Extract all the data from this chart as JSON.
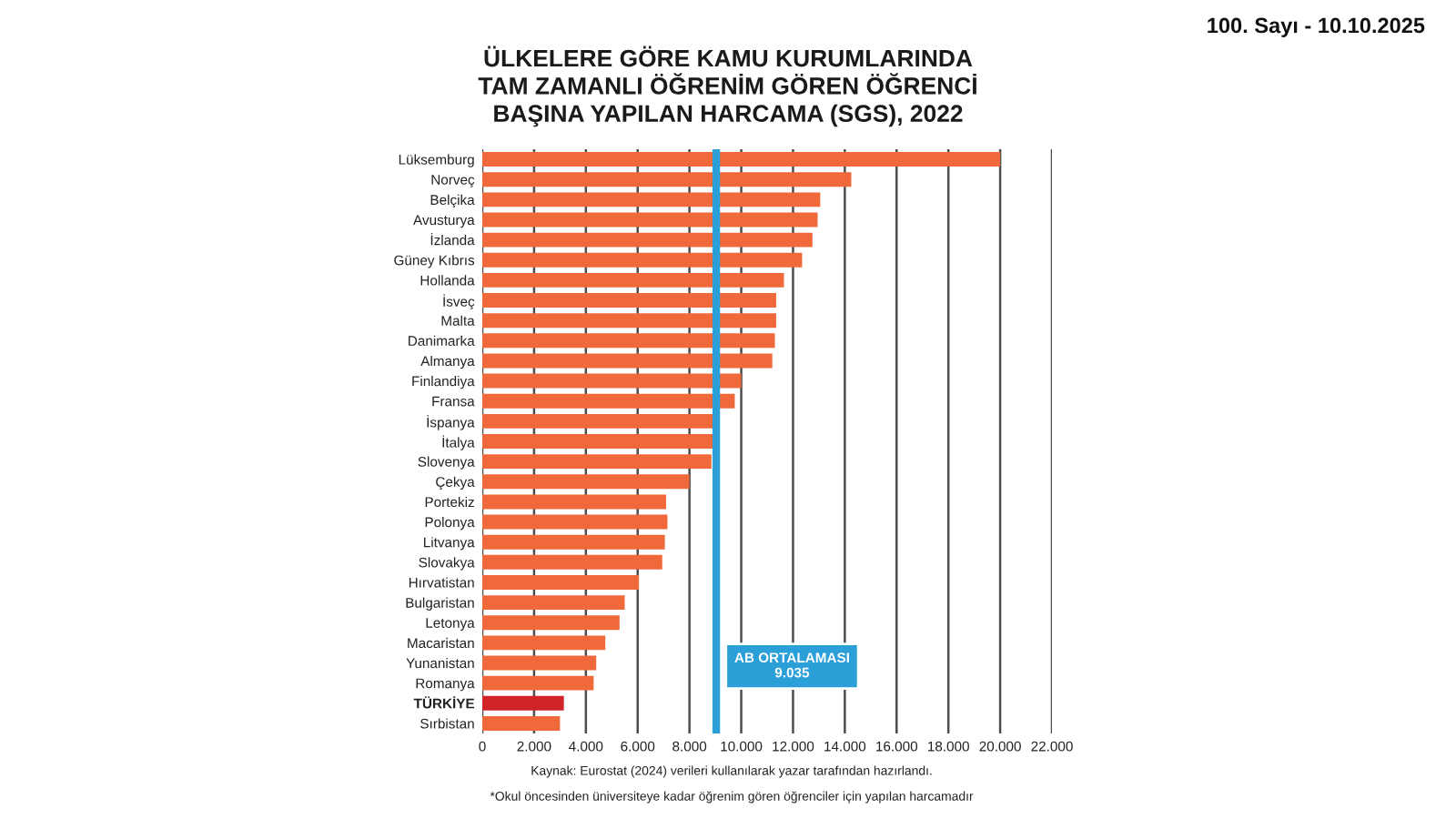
{
  "chart_data": {
    "type": "bar",
    "orientation": "horizontal",
    "title": "ÜLKELERE GÖRE KAMU KURUMLARINDA\nTAM ZAMANLI ÖĞRENİM GÖREN ÖĞRENCİ\nBAŞINA YAPILAN HARCAMA (SGS), 2022",
    "categories": [
      "Lüksemburg",
      "Norveç",
      "Belçika",
      "Avusturya",
      "İzlanda",
      "Güney Kıbrıs",
      "Hollanda",
      "İsveç",
      "Malta",
      "Danimarka",
      "Almanya",
      "Finlandiya",
      "Fransa",
      "İspanya",
      "İtalya",
      "Slovenya",
      "Çekya",
      "Portekiz",
      "Polonya",
      "Litvanya",
      "Slovakya",
      "Hırvatistan",
      "Bulgaristan",
      "Letonya",
      "Macaristan",
      "Yunanistan",
      "Romanya",
      "TÜRKİYE",
      "Sırbistan"
    ],
    "values": [
      20000,
      14250,
      13050,
      12950,
      12750,
      12350,
      11650,
      11350,
      11350,
      11300,
      11200,
      10000,
      9750,
      9000,
      9000,
      8850,
      8000,
      7100,
      7150,
      7050,
      6950,
      6050,
      5500,
      5300,
      4750,
      4400,
      4300,
      3150,
      3000
    ],
    "colors": [
      "#f0693b",
      "#f0693b",
      "#f0693b",
      "#f0693b",
      "#f0693b",
      "#f0693b",
      "#f0693b",
      "#f0693b",
      "#f0693b",
      "#f0693b",
      "#f0693b",
      "#f0693b",
      "#f0693b",
      "#f0693b",
      "#f0693b",
      "#f0693b",
      "#f0693b",
      "#f0693b",
      "#f0693b",
      "#f0693b",
      "#f0693b",
      "#f0693b",
      "#f0693b",
      "#f0693b",
      "#f0693b",
      "#f0693b",
      "#f0693b",
      "#d0232a",
      "#f0693b"
    ],
    "xlim": [
      0,
      22000
    ],
    "xticks": [
      0,
      {
        "value": 2000,
        "label": "2.000"
      },
      {
        "value": 4000,
        "label": "4.000"
      },
      {
        "value": 6000,
        "label": "6.000"
      },
      {
        "value": 8000,
        "label": "8.000"
      },
      {
        "value": 10000,
        "label": "10.000"
      },
      {
        "value": 12000,
        "label": "12.000"
      },
      {
        "value": 14000,
        "label": "14.000"
      },
      {
        "value": 16000,
        "label": "16.000"
      },
      {
        "value": 18000,
        "label": "18.000"
      },
      {
        "value": 20000,
        "label": "20.000"
      },
      {
        "value": 22000,
        "label": "22.000"
      }
    ],
    "grid": "x",
    "ref_lines": [
      {
        "axis": "x",
        "value": 9035,
        "label": "AB ORTALAMASI\n9.035",
        "color": "#2a9fd8"
      }
    ],
    "annotations": [
      "100. Sayı - 10.10.2025",
      "Kaynak: Eurostat (2024) verileri kullanılarak yazar tarafından hazırlandı.",
      "*Okul öncesinden üniversiteye kadar öğrenim gören öğrenciler için yapılan harcamadır"
    ]
  }
}
